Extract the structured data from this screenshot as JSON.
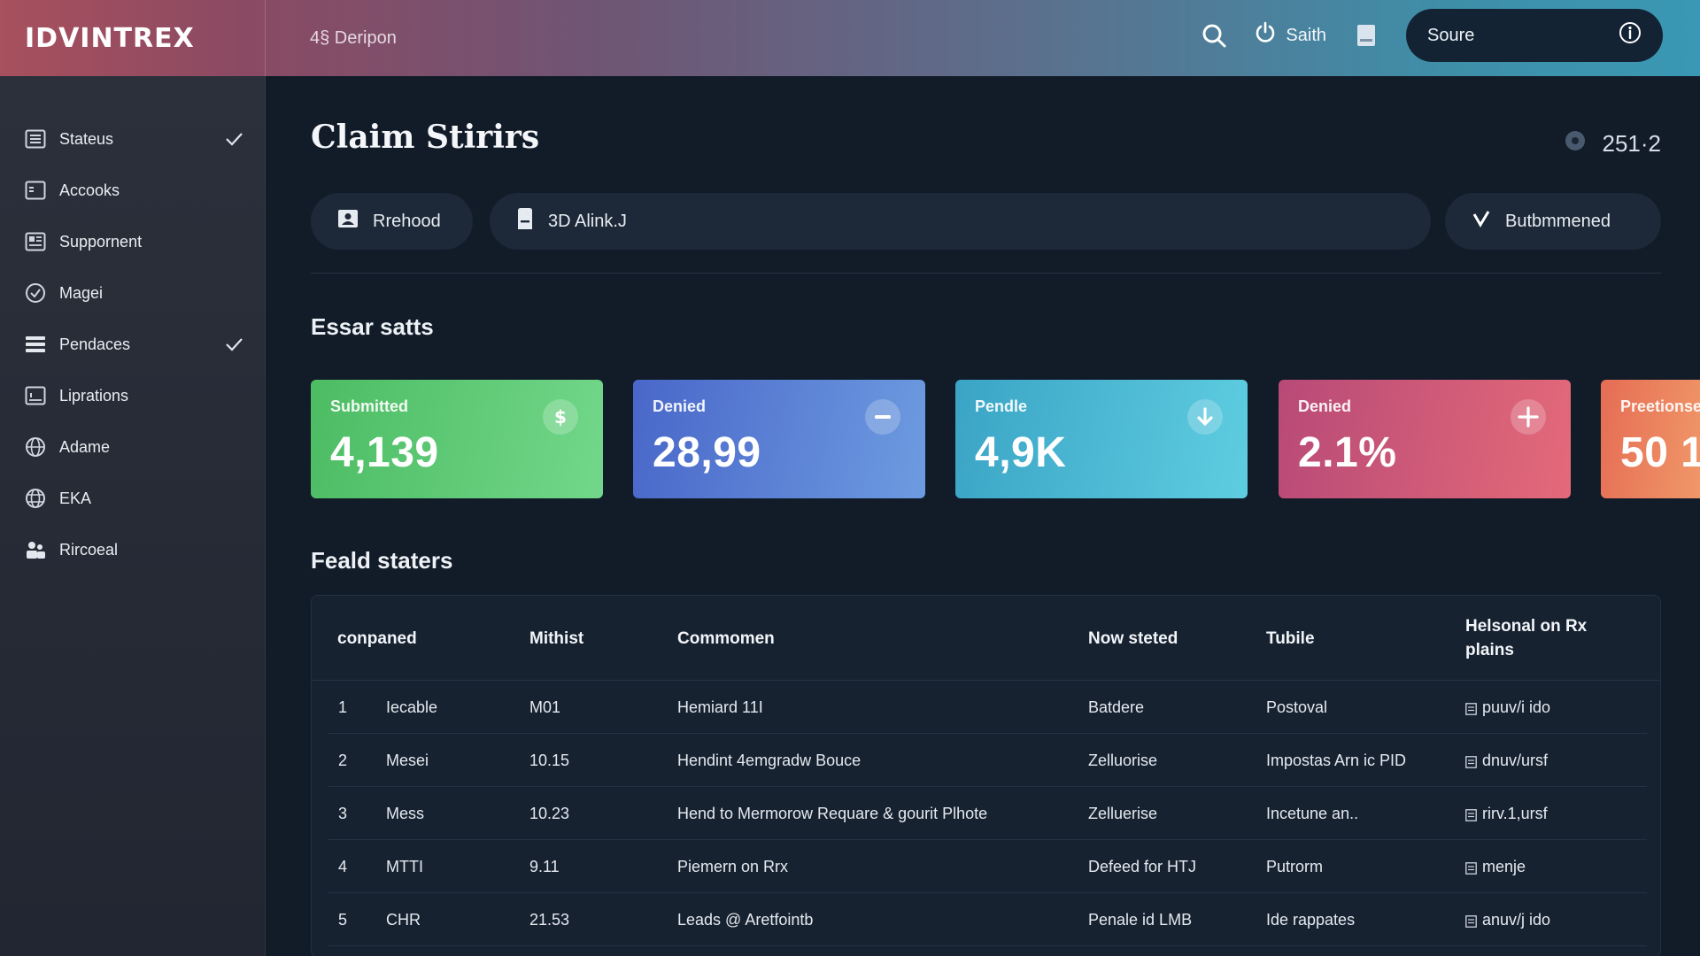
{
  "app": {
    "brand": "IDVINTREX",
    "breadcrumb": "4§ Deripon"
  },
  "topbar": {
    "user_name": "Saith",
    "source_label": "Soure",
    "icons": [
      "search-icon",
      "power-icon",
      "document-icon",
      "info-icon"
    ]
  },
  "sidebar": {
    "items": [
      {
        "label": "Stateus",
        "icon": "list-icon",
        "checked": true
      },
      {
        "label": "Accooks",
        "icon": "card-icon",
        "checked": false
      },
      {
        "label": "Suppornent",
        "icon": "newspaper-icon",
        "checked": false
      },
      {
        "label": "Magei",
        "icon": "check-circle-icon",
        "checked": false
      },
      {
        "label": "Pendaces",
        "icon": "stack-icon",
        "checked": true
      },
      {
        "label": "Liprations",
        "icon": "chart-icon",
        "checked": false
      },
      {
        "label": "Adame",
        "icon": "globe-icon",
        "checked": false
      },
      {
        "label": "EKA",
        "icon": "globe-icon",
        "checked": false
      },
      {
        "label": "Rircoeal",
        "icon": "people-icon",
        "checked": false
      }
    ]
  },
  "main": {
    "title": "Claim Stirirs",
    "counter": "251·2",
    "filters": {
      "rrehood": "Rrehood",
      "alink": "3D Alink.J",
      "butbmmened": "Butbmmened"
    },
    "essar_title": "Essar satts",
    "feald_title": "Feald staters"
  },
  "cards": [
    {
      "label": "Submitted",
      "value": "4,139",
      "icon": "dollar-icon",
      "color_from": "#4cbc63",
      "color_to": "#72d78a"
    },
    {
      "label": "Denied",
      "value": "28,99",
      "icon": "minus-icon",
      "color_from": "#4967c9",
      "color_to": "#6d9be0"
    },
    {
      "label": "Pendle",
      "value": "4,9K",
      "icon": "arrow-down-icon",
      "color_from": "#3ba4c6",
      "color_to": "#5ecde0"
    },
    {
      "label": "Denied",
      "value": "2.1%",
      "icon": "plus-icon",
      "color_from": "#b84a77",
      "color_to": "#e46a79"
    },
    {
      "label": "Preetionse",
      "value": "50 1",
      "icon": "",
      "color_from": "#e56d54",
      "color_to": "#f19a6a"
    }
  ],
  "table": {
    "headers": [
      "conpaned",
      "Mithist",
      "Commomen",
      "Now steted",
      "Tubile",
      "Helsonal on Rx plains"
    ],
    "rows": [
      {
        "num": "1",
        "company": "Iecable",
        "mithist": "M01",
        "comment": "Hemiard 11I",
        "status": "Batdere",
        "tubile": "Postoval",
        "plan": "puuv/i ido"
      },
      {
        "num": "2",
        "company": "Mesei",
        "mithist": "10.15",
        "comment": "Hendint 4emgradw Bouce",
        "status": "Zelluorise",
        "tubile": "Impostas Arn ic PID",
        "plan": "dnuv/ursf"
      },
      {
        "num": "3",
        "company": "Mess",
        "mithist": "10.23",
        "comment": "Hend to Mermorow Requare & gourit Plhote",
        "status": "Zelluerise",
        "tubile": "Incetune an..",
        "plan": "rirv.1,ursf"
      },
      {
        "num": "4",
        "company": "MTTI",
        "mithist": "9.11",
        "comment": "Piemern on Rrx",
        "status": "Defeed for HTJ",
        "tubile": "Putrorm",
        "plan": "menje"
      },
      {
        "num": "5",
        "company": "CHR",
        "mithist": "21.53",
        "comment": "Leads @ Aretfointb",
        "status": "Penale id LMB",
        "tubile": "Ide rappates",
        "plan": "anuv/j ido"
      }
    ]
  }
}
